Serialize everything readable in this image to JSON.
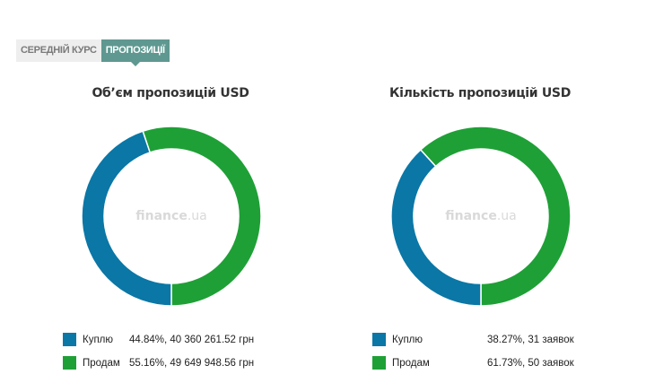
{
  "tabs": [
    {
      "label": "СЕРЕДНІЙ КУРС",
      "active": false
    },
    {
      "label": "ПРОПОЗИЦІЇ",
      "active": true
    }
  ],
  "watermark": {
    "main": "finance",
    "suffix": ".ua"
  },
  "colors": {
    "buy": "#0a77a6",
    "sell": "#1ea036"
  },
  "chart_data": [
    {
      "type": "pie",
      "title": "Обʼєм пропозицій USD",
      "labels": [
        "Куплю",
        "Продам"
      ],
      "values": [
        44.84,
        55.16
      ],
      "legend_values": [
        "44.84%, 40 360 261.52 грн",
        "55.16%, 49 649 948.56 грн"
      ],
      "legend_position": "bottom"
    },
    {
      "type": "pie",
      "title": "Кількість пропозицій USD",
      "labels": [
        "Куплю",
        "Продам"
      ],
      "values": [
        38.27,
        61.73
      ],
      "legend_values": [
        "38.27%, 31 заявок",
        "61.73%, 50 заявок"
      ],
      "legend_position": "bottom"
    }
  ]
}
